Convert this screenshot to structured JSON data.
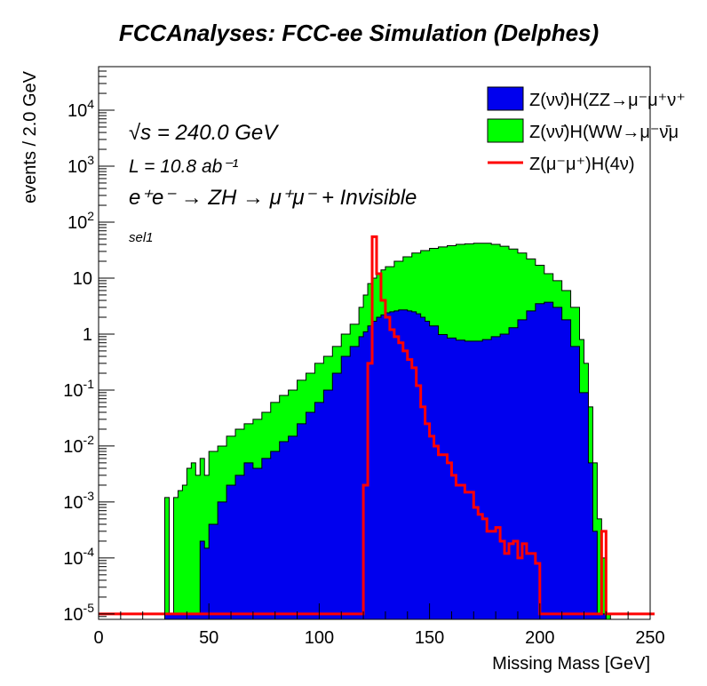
{
  "chart_data": {
    "type": "area",
    "title": "FCCAnalyses: FCC-ee Simulation (Delphes)",
    "xlabel": "Missing Mass [GeV]",
    "ylabel": "events / 2.0 GeV",
    "xlim": [
      0,
      250
    ],
    "ylim": [
      8e-06,
      60000
    ],
    "yscale": "log",
    "grid": false,
    "legend_position": "top-right",
    "x_ticks": [
      "0",
      "50",
      "100",
      "150",
      "200",
      "250"
    ],
    "y_ticks": [
      {
        "value": 1e-05,
        "label": "10",
        "exp": "-5"
      },
      {
        "value": 0.0001,
        "label": "10",
        "exp": "-4"
      },
      {
        "value": 0.001,
        "label": "10",
        "exp": "-3"
      },
      {
        "value": 0.01,
        "label": "10",
        "exp": "-2"
      },
      {
        "value": 0.1,
        "label": "10",
        "exp": "-1"
      },
      {
        "value": 1,
        "label": "1",
        "exp": ""
      },
      {
        "value": 10,
        "label": "10",
        "exp": ""
      },
      {
        "value": 100,
        "label": "10",
        "exp": "2"
      },
      {
        "value": 1000,
        "label": "10",
        "exp": "3"
      },
      {
        "value": 10000,
        "label": "10",
        "exp": "4"
      }
    ],
    "annotations": [
      {
        "id": "sqrts",
        "text": "√s = 240.0 GeV"
      },
      {
        "id": "lumi",
        "text": "L = 10.8 ab⁻¹"
      },
      {
        "id": "process",
        "text": "e⁺e⁻ → ZH → μ⁺μ⁻ + Invisible"
      },
      {
        "id": "selection",
        "text": "sel1"
      }
    ],
    "series": [
      {
        "name": "Z(νν̄)H(ZZ→μ⁻μ⁺ν⁺",
        "style": "filled",
        "color": "#0000ee",
        "x": [
          30,
          34,
          38,
          42,
          46,
          48,
          50,
          54,
          58,
          62,
          66,
          70,
          74,
          78,
          82,
          86,
          90,
          94,
          98,
          102,
          106,
          110,
          114,
          118,
          120,
          122,
          124,
          126,
          128,
          130,
          132,
          134,
          136,
          138,
          140,
          142,
          144,
          146,
          148,
          150,
          154,
          158,
          162,
          166,
          170,
          174,
          178,
          182,
          186,
          190,
          194,
          198,
          202,
          206,
          210,
          214,
          218,
          222,
          224,
          226,
          228
        ],
        "values": [
          1e-05,
          1e-05,
          1e-05,
          1e-05,
          0.0002,
          0.00015,
          0.0004,
          0.001,
          0.002,
          0.003,
          0.005,
          0.004,
          0.006,
          0.008,
          0.012,
          0.015,
          0.025,
          0.04,
          0.06,
          0.1,
          0.2,
          0.4,
          0.6,
          0.9,
          1.1,
          1.4,
          1.7,
          2.0,
          2.2,
          2.4,
          2.5,
          2.6,
          2.7,
          2.7,
          2.6,
          2.5,
          2.3,
          2.0,
          1.7,
          1.4,
          0.98,
          0.85,
          0.78,
          0.75,
          0.75,
          0.8,
          0.9,
          1.0,
          1.3,
          1.8,
          2.6,
          3.5,
          3.7,
          3.0,
          1.8,
          0.6,
          0.09,
          0.005,
          0.0003,
          1e-05,
          1e-05
        ]
      },
      {
        "name": "Z(νν̄)H(WW→μ⁻ν̄μ",
        "style": "filled",
        "color": "#00ff00",
        "x": [
          30,
          32,
          34,
          36,
          38,
          40,
          42,
          44,
          46,
          48,
          50,
          54,
          58,
          62,
          66,
          70,
          74,
          78,
          82,
          86,
          90,
          94,
          98,
          102,
          106,
          110,
          114,
          118,
          120,
          122,
          124,
          126,
          128,
          130,
          134,
          138,
          142,
          146,
          150,
          154,
          158,
          162,
          166,
          170,
          174,
          178,
          182,
          186,
          190,
          194,
          198,
          202,
          206,
          210,
          214,
          218,
          220,
          222,
          224,
          226,
          228,
          230
        ],
        "values": [
          0.0012,
          1e-05,
          0.0012,
          0.0016,
          0.002,
          0.004,
          0.005,
          0.003,
          0.006,
          0.003,
          0.008,
          0.01,
          0.015,
          0.02,
          0.025,
          0.03,
          0.04,
          0.06,
          0.08,
          0.1,
          0.15,
          0.2,
          0.3,
          0.4,
          0.6,
          1.0,
          1.5,
          3.0,
          5.0,
          8.0,
          10,
          12,
          14,
          16,
          20,
          24,
          28,
          31,
          34,
          36,
          38,
          40,
          41,
          42,
          42,
          40,
          37,
          33,
          28,
          22,
          17,
          12,
          9,
          6,
          3.0,
          0.8,
          0.3,
          0.05,
          0.005,
          0.0005,
          0.0001,
          1e-05
        ]
      },
      {
        "name": "Z(μ⁻μ⁺)H(4ν)",
        "style": "line",
        "color": "#ff0000",
        "x": [
          0,
          118,
          120,
          122,
          124,
          126,
          128,
          130,
          132,
          134,
          136,
          138,
          140,
          142,
          144,
          146,
          148,
          150,
          152,
          154,
          156,
          158,
          160,
          162,
          164,
          166,
          168,
          170,
          172,
          174,
          176,
          178,
          180,
          182,
          184,
          186,
          188,
          190,
          192,
          194,
          196,
          198,
          200,
          202,
          204,
          206,
          226,
          228,
          230,
          232,
          250
        ],
        "values": [
          1e-05,
          1e-05,
          0.002,
          0.3,
          55,
          12,
          4,
          2,
          1.2,
          0.9,
          0.7,
          0.5,
          0.35,
          0.25,
          0.12,
          0.05,
          0.025,
          0.015,
          0.01,
          0.007,
          0.007,
          0.005,
          0.003,
          0.002,
          0.002,
          0.0015,
          0.0015,
          0.0008,
          0.0006,
          0.0005,
          0.0003,
          0.0003,
          0.00035,
          0.0002,
          0.00012,
          0.00018,
          0.0002,
          0.0001,
          0.00018,
          0.00012,
          0.00012,
          8e-05,
          1e-05,
          1e-05,
          1e-05,
          1e-05,
          1e-05,
          0.0003,
          1e-05,
          1e-05,
          1e-05
        ]
      }
    ]
  }
}
